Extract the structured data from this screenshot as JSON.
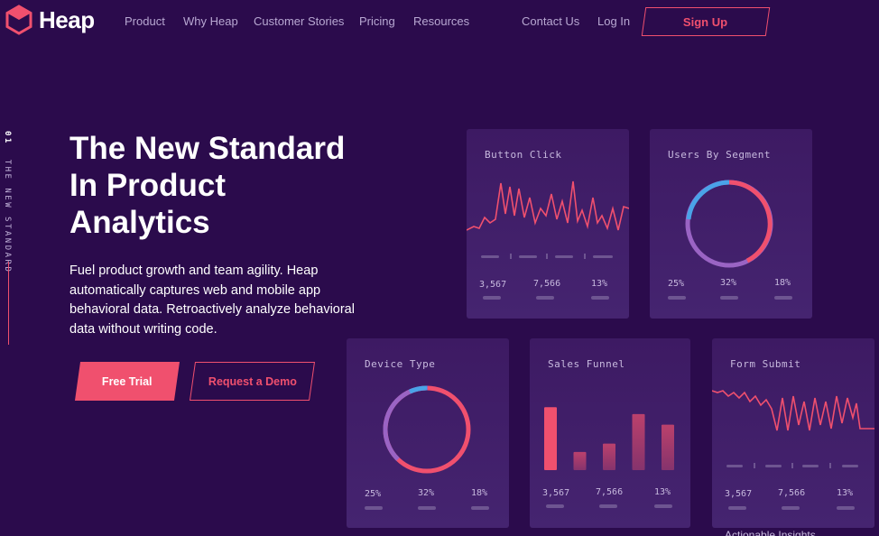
{
  "nav": {
    "brand": "Heap",
    "links": [
      "Product",
      "Why Heap",
      "Customer Stories",
      "Pricing",
      "Resources"
    ],
    "contact": "Contact Us",
    "login": "Log In",
    "signup": "Sign Up"
  },
  "side_label": {
    "number": "01",
    "text": "THE NEW STANDARD"
  },
  "hero": {
    "headline_lines": [
      "The New Standard",
      "In Product",
      "Analytics"
    ],
    "subtext": "Fuel product growth and team agility. Heap automatically captures web and mobile app behavioral data. Retroactively analyze behavioral data without writing code.",
    "cta_primary": "Free Trial",
    "cta_secondary": "Request a Demo"
  },
  "colors": {
    "accent": "#f0506e",
    "blue": "#4aa3e8",
    "purple": "#9a64c4",
    "bg": "#2b0b4c"
  },
  "cards": [
    {
      "title": "Button Click",
      "stats": [
        "3,567",
        "7,566",
        "13%"
      ]
    },
    {
      "title": "Users By Segment",
      "stats": [
        "25%",
        "32%",
        "18%"
      ]
    },
    {
      "title": "Device Type",
      "stats": [
        "25%",
        "32%",
        "18%"
      ]
    },
    {
      "title": "Sales Funnel",
      "stats": [
        "3,567",
        "7,566",
        "13%"
      ]
    },
    {
      "title": "Form Submit",
      "stats": [
        "3,567",
        "7,566",
        "13%"
      ]
    }
  ],
  "funnel_values": [
    0.83,
    0.24,
    0.35,
    0.74,
    0.6
  ],
  "footer_snip": "Actionable Insights"
}
